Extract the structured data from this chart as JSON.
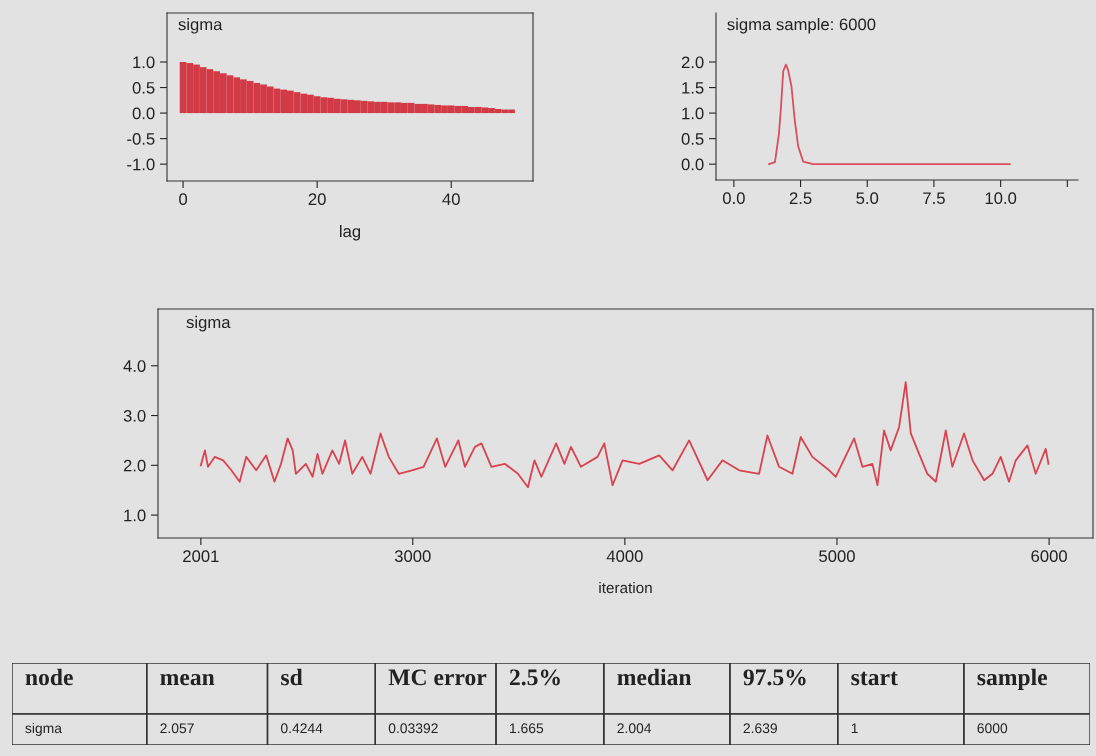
{
  "chart_data": [
    {
      "type": "bar",
      "title": "sigma",
      "xlabel": "lag",
      "xlim": [
        -2.4,
        52.2
      ],
      "ylim": [
        -1.33,
        1.96
      ],
      "xticks": [
        0,
        20,
        40
      ],
      "yticks": [
        {
          "value": 1,
          "label": "1.0"
        },
        {
          "value": 0.5,
          "label": "0.5"
        },
        {
          "value": 0,
          "label": "0.0"
        },
        {
          "value": -0.5,
          "label": "-0.5"
        },
        {
          "value": -1,
          "label": "-1.0"
        }
      ],
      "x": [
        0,
        1,
        2,
        3,
        4,
        5,
        6,
        7,
        8,
        9,
        10,
        11,
        12,
        13,
        14,
        15,
        16,
        17,
        18,
        19,
        20,
        21,
        22,
        23,
        24,
        25,
        26,
        27,
        28,
        29,
        30,
        31,
        32,
        33,
        34,
        35,
        36,
        37,
        38,
        39,
        40,
        41,
        42,
        43,
        44,
        45,
        46,
        47,
        48,
        49
      ],
      "series": [
        {
          "color": "#d23b46",
          "values": [
            1.0,
            0.98,
            0.95,
            0.9,
            0.86,
            0.82,
            0.78,
            0.74,
            0.7,
            0.66,
            0.63,
            0.59,
            0.56,
            0.52,
            0.48,
            0.46,
            0.44,
            0.41,
            0.38,
            0.36,
            0.33,
            0.31,
            0.3,
            0.28,
            0.27,
            0.26,
            0.25,
            0.24,
            0.23,
            0.22,
            0.22,
            0.21,
            0.21,
            0.2,
            0.2,
            0.18,
            0.18,
            0.17,
            0.16,
            0.15,
            0.15,
            0.14,
            0.14,
            0.12,
            0.12,
            0.11,
            0.1,
            0.08,
            0.07,
            0.07
          ]
        }
      ]
    },
    {
      "type": "line",
      "title": "sigma sample: 6000",
      "xlim": [
        -0.67,
        12.9
      ],
      "ylim": [
        -0.31,
        2.96
      ],
      "xticks": [
        {
          "value": 0,
          "label": "0.0"
        },
        {
          "value": 2.5,
          "label": "2.5"
        },
        {
          "value": 5,
          "label": "5.0"
        },
        {
          "value": 7.5,
          "label": "7.5"
        },
        {
          "value": 10,
          "label": "10.0"
        },
        {
          "value": 12.5,
          "label": null
        }
      ],
      "yticks": [
        {
          "value": 0,
          "label": "0.0"
        },
        {
          "value": 0.5,
          "label": "0.5"
        },
        {
          "value": 1,
          "label": "1.0"
        },
        {
          "value": 1.5,
          "label": "1.5"
        },
        {
          "value": 2,
          "label": "2.0"
        }
      ],
      "series": [
        {
          "color": "#d8505e",
          "x": [
            1.32,
            1.54,
            1.69,
            1.76,
            1.85,
            1.95,
            2.03,
            2.16,
            2.28,
            2.41,
            2.6,
            2.97,
            10.34
          ],
          "values": [
            0.0,
            0.04,
            0.6,
            1.07,
            1.82,
            1.95,
            1.85,
            1.52,
            0.87,
            0.35,
            0.05,
            0.0,
            0.0
          ]
        }
      ]
    },
    {
      "type": "line",
      "title": "sigma",
      "xlabel": "iteration",
      "xlim": [
        1799,
        6207
      ],
      "ylim": [
        0.54,
        5.14
      ],
      "xticks": [
        2001,
        3000,
        4000,
        5000,
        6000
      ],
      "yticks": [
        {
          "value": 1,
          "label": "1.0"
        },
        {
          "value": 2,
          "label": "2.0"
        },
        {
          "value": 3,
          "label": "3.0"
        },
        {
          "value": 4,
          "label": "4.0"
        }
      ],
      "series": [
        {
          "color": "#d8434f",
          "x": [
            2001,
            2020,
            2035,
            2067,
            2106,
            2145,
            2184,
            2215,
            2262,
            2309,
            2348,
            2379,
            2410,
            2434,
            2449,
            2496,
            2528,
            2551,
            2574,
            2621,
            2653,
            2681,
            2715,
            2762,
            2801,
            2848,
            2887,
            2934,
            2996,
            3051,
            3114,
            3153,
            3215,
            3246,
            3293,
            3324,
            3371,
            3434,
            3496,
            3543,
            3574,
            3606,
            3676,
            3715,
            3746,
            3793,
            3871,
            3903,
            3942,
            3989,
            4068,
            4162,
            4225,
            4303,
            4390,
            4460,
            4539,
            4633,
            4672,
            4727,
            4790,
            4829,
            4884,
            4963,
            4994,
            5081,
            5120,
            5167,
            5191,
            5222,
            5253,
            5293,
            5324,
            5348,
            5387,
            5426,
            5466,
            5513,
            5544,
            5599,
            5639,
            5694,
            5733,
            5772,
            5811,
            5843,
            5898,
            5937,
            5984,
            5997
          ],
          "values": [
            2.0,
            2.3,
            1.97,
            2.17,
            2.1,
            1.9,
            1.67,
            2.17,
            1.9,
            2.2,
            1.67,
            2.03,
            2.54,
            2.3,
            1.83,
            2.03,
            1.77,
            2.23,
            1.83,
            2.3,
            2.03,
            2.5,
            1.83,
            2.17,
            1.83,
            2.64,
            2.17,
            1.83,
            1.9,
            1.97,
            2.54,
            1.97,
            2.5,
            1.97,
            2.37,
            2.44,
            1.97,
            2.03,
            1.83,
            1.56,
            2.1,
            1.77,
            2.44,
            2.03,
            2.37,
            1.97,
            2.17,
            2.44,
            1.6,
            2.1,
            2.03,
            2.2,
            1.9,
            2.5,
            1.7,
            2.1,
            1.9,
            1.83,
            2.6,
            1.97,
            1.83,
            2.57,
            2.17,
            1.9,
            1.77,
            2.54,
            1.97,
            2.03,
            1.6,
            2.7,
            2.3,
            2.77,
            3.67,
            2.64,
            2.23,
            1.83,
            1.67,
            2.7,
            1.97,
            2.64,
            2.1,
            1.7,
            1.83,
            2.17,
            1.67,
            2.1,
            2.4,
            1.83,
            2.33,
            2.03
          ]
        }
      ]
    },
    {
      "type": "other",
      "ylabel": "node",
      "categories": [
        "mean",
        "sd",
        "MC error",
        "2.5%",
        "median",
        "97.5%",
        "start",
        "sample"
      ],
      "data_labels": true,
      "series": [
        {
          "name": "sigma",
          "values": [
            2.057,
            0.4244,
            0.03392,
            1.665,
            2.004,
            2.639,
            1,
            6000
          ]
        }
      ]
    }
  ]
}
